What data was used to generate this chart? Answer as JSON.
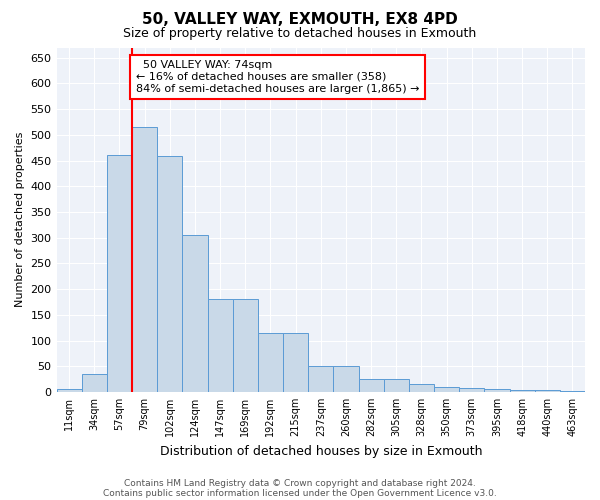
{
  "title1": "50, VALLEY WAY, EXMOUTH, EX8 4PD",
  "title2": "Size of property relative to detached houses in Exmouth",
  "xlabel": "Distribution of detached houses by size in Exmouth",
  "ylabel": "Number of detached properties",
  "categories": [
    "11sqm",
    "34sqm",
    "57sqm",
    "79sqm",
    "102sqm",
    "124sqm",
    "147sqm",
    "169sqm",
    "192sqm",
    "215sqm",
    "237sqm",
    "260sqm",
    "282sqm",
    "305sqm",
    "328sqm",
    "350sqm",
    "373sqm",
    "395sqm",
    "418sqm",
    "440sqm",
    "463sqm"
  ],
  "values": [
    5,
    35,
    460,
    515,
    458,
    305,
    180,
    180,
    115,
    115,
    50,
    50,
    25,
    25,
    15,
    10,
    7,
    5,
    3,
    3,
    2
  ],
  "bar_color": "#c9d9e8",
  "bar_edge_color": "#5b9bd5",
  "vline_x_index": 2.5,
  "vline_color": "red",
  "annotation_text": "  50 VALLEY WAY: 74sqm\n← 16% of detached houses are smaller (358)\n84% of semi-detached houses are larger (1,865) →",
  "annotation_box_color": "white",
  "annotation_box_edge_color": "red",
  "ylim": [
    0,
    670
  ],
  "yticks": [
    0,
    50,
    100,
    150,
    200,
    250,
    300,
    350,
    400,
    450,
    500,
    550,
    600,
    650
  ],
  "footer1": "Contains HM Land Registry data © Crown copyright and database right 2024.",
  "footer2": "Contains public sector information licensed under the Open Government Licence v3.0.",
  "bg_color": "#eef2f9",
  "grid_color": "white",
  "title1_fontsize": 11,
  "title2_fontsize": 9,
  "ylabel_fontsize": 8,
  "xlabel_fontsize": 9,
  "xtick_fontsize": 7,
  "ytick_fontsize": 8,
  "annot_fontsize": 8,
  "footer_fontsize": 6.5
}
